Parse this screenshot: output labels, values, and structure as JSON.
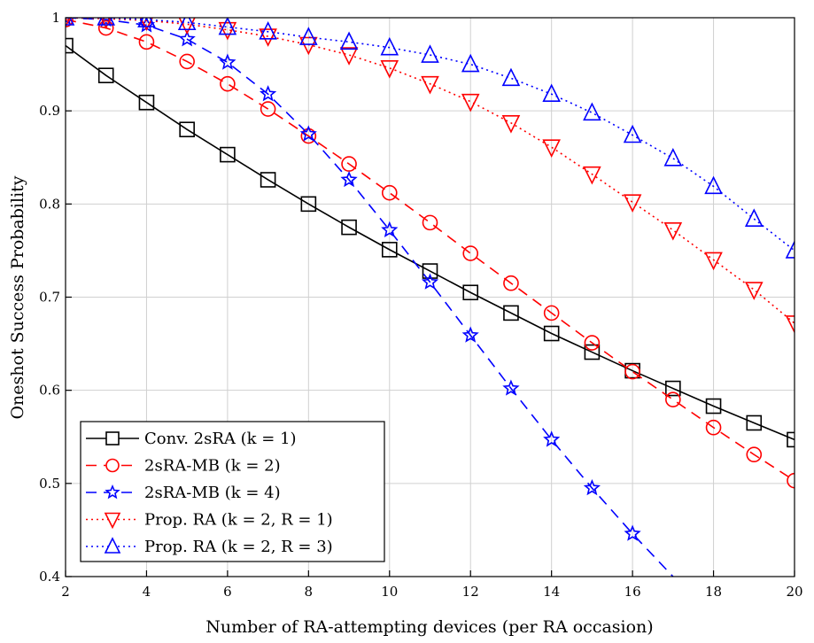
{
  "chart_data": {
    "type": "line",
    "xlabel": "Number of RA-attempting devices (per RA occasion)",
    "ylabel": "Oneshot Success Probability",
    "xlim": [
      2,
      20
    ],
    "ylim": [
      0.4,
      1.0
    ],
    "xticks": [
      "2",
      "4",
      "6",
      "8",
      "10",
      "12",
      "14",
      "16",
      "18",
      "20"
    ],
    "yticks": [
      "0.4",
      "0.5",
      "0.6",
      "0.7",
      "0.8",
      "0.9",
      "1"
    ],
    "grid": true,
    "legend_position": "bottom-left",
    "x": [
      2,
      3,
      4,
      5,
      6,
      7,
      8,
      9,
      10,
      11,
      12,
      13,
      14,
      15,
      16,
      17,
      18,
      19,
      20
    ],
    "series": [
      {
        "name": "Conv. 2sRA (k = 1)",
        "color": "#000000",
        "dash": "solid",
        "marker": "square",
        "values": [
          0.97,
          0.938,
          0.909,
          0.88,
          0.853,
          0.826,
          0.8,
          0.775,
          0.751,
          0.728,
          0.705,
          0.683,
          0.661,
          0.641,
          0.621,
          0.602,
          0.583,
          0.565,
          0.547
        ]
      },
      {
        "name": "2sRA-MB (k = 2)",
        "color": "#ff0000",
        "dash": "dashed",
        "marker": "circle",
        "values": [
          0.998,
          0.989,
          0.974,
          0.953,
          0.929,
          0.902,
          0.873,
          0.843,
          0.812,
          0.78,
          0.747,
          0.715,
          0.683,
          0.651,
          0.62,
          0.59,
          0.56,
          0.531,
          0.503
        ]
      },
      {
        "name": "2sRA-MB (k = 4)",
        "color": "#0000ff",
        "dash": "dashed",
        "marker": "star",
        "values": [
          1.0,
          0.998,
          0.992,
          0.977,
          0.952,
          0.918,
          0.875,
          0.826,
          0.772,
          0.716,
          0.659,
          0.602,
          0.547,
          0.495,
          0.446,
          0.4,
          null,
          null,
          null
        ]
      },
      {
        "name": "Prop. RA (k = 2, R = 1)",
        "color": "#ff0000",
        "dash": "dotted",
        "marker": "triangle-down",
        "values": [
          1.0,
          0.999,
          0.997,
          0.993,
          0.987,
          0.98,
          0.971,
          0.96,
          0.946,
          0.929,
          0.91,
          0.887,
          0.861,
          0.832,
          0.802,
          0.772,
          0.74,
          0.708,
          0.672
        ]
      },
      {
        "name": "Prop. RA (k = 2, R = 3)",
        "color": "#0000ff",
        "dash": "dotted",
        "marker": "triangle-up",
        "values": [
          1.0,
          1.0,
          0.998,
          0.995,
          0.99,
          0.985,
          0.979,
          0.974,
          0.968,
          0.96,
          0.95,
          0.935,
          0.918,
          0.898,
          0.874,
          0.849,
          0.819,
          0.784,
          0.75
        ]
      }
    ]
  }
}
